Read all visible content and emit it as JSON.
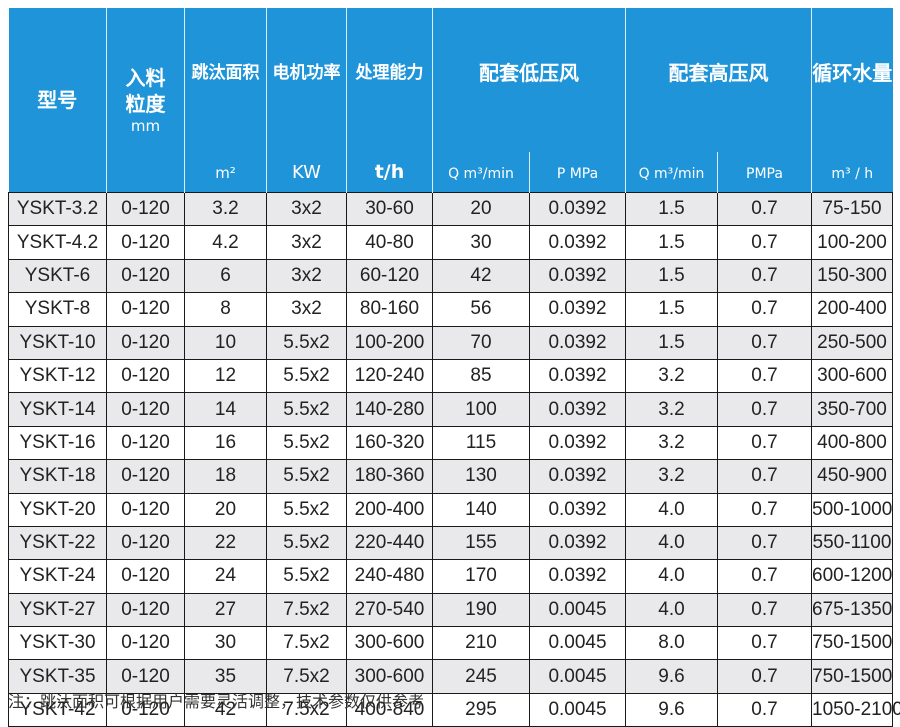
{
  "table": {
    "header": {
      "model": "型号",
      "grain_size": "入料粒度",
      "grain_size_unit": "mm",
      "jig_area": "跳汰面积",
      "jig_area_unit": "m²",
      "motor_power": "电机功率",
      "motor_power_unit": "KW",
      "capacity": "处理能力",
      "capacity_unit": "t/h",
      "low_pressure_air": "配套低压风",
      "low_q": "Q m³/min",
      "low_p": "P MPa",
      "high_pressure_air": "配套高压风",
      "high_q": "Q m³/min",
      "high_p": "PMPa",
      "circulating_water": "循环水量",
      "circulating_water_unit": "m³ / h"
    },
    "rows": [
      [
        "YSKT-3.2",
        "0-120",
        "3.2",
        "3x2",
        "30-60",
        "20",
        "0.0392",
        "1.5",
        "0.7",
        "75-150"
      ],
      [
        "YSKT-4.2",
        "0-120",
        "4.2",
        "3x2",
        "40-80",
        "30",
        "0.0392",
        "1.5",
        "0.7",
        "100-200"
      ],
      [
        "YSKT-6",
        "0-120",
        "6",
        "3x2",
        "60-120",
        "42",
        "0.0392",
        "1.5",
        "0.7",
        "150-300"
      ],
      [
        "YSKT-8",
        "0-120",
        "8",
        "3x2",
        "80-160",
        "56",
        "0.0392",
        "1.5",
        "0.7",
        "200-400"
      ],
      [
        "YSKT-10",
        "0-120",
        "10",
        "5.5x2",
        "100-200",
        "70",
        "0.0392",
        "1.5",
        "0.7",
        "250-500"
      ],
      [
        "YSKT-12",
        "0-120",
        "12",
        "5.5x2",
        "120-240",
        "85",
        "0.0392",
        "3.2",
        "0.7",
        "300-600"
      ],
      [
        "YSKT-14",
        "0-120",
        "14",
        "5.5x2",
        "140-280",
        "100",
        "0.0392",
        "3.2",
        "0.7",
        "350-700"
      ],
      [
        "YSKT-16",
        "0-120",
        "16",
        "5.5x2",
        "160-320",
        "115",
        "0.0392",
        "3.2",
        "0.7",
        "400-800"
      ],
      [
        "YSKT-18",
        "0-120",
        "18",
        "5.5x2",
        "180-360",
        "130",
        "0.0392",
        "3.2",
        "0.7",
        "450-900"
      ],
      [
        "YSKT-20",
        "0-120",
        "20",
        "5.5x2",
        "200-400",
        "140",
        "0.0392",
        "4.0",
        "0.7",
        "500-1000"
      ],
      [
        "YSKT-22",
        "0-120",
        "22",
        "5.5x2",
        "220-440",
        "155",
        "0.0392",
        "4.0",
        "0.7",
        "550-1100"
      ],
      [
        "YSKT-24",
        "0-120",
        "24",
        "5.5x2",
        "240-480",
        "170",
        "0.0392",
        "4.0",
        "0.7",
        "600-1200"
      ],
      [
        "YSKT-27",
        "0-120",
        "27",
        "7.5x2",
        "270-540",
        "190",
        "0.0045",
        "4.0",
        "0.7",
        "675-1350"
      ],
      [
        "YSKT-30",
        "0-120",
        "30",
        "7.5x2",
        "300-600",
        "210",
        "0.0045",
        "8.0",
        "0.7",
        "750-1500"
      ],
      [
        "YSKT-35",
        "0-120",
        "35",
        "7.5x2",
        "300-600",
        "245",
        "0.0045",
        "9.6",
        "0.7",
        "750-1500"
      ],
      [
        "YSKT-42",
        "0-120",
        "42",
        "7.5x2",
        "400-840",
        "295",
        "0.0045",
        "9.6",
        "0.7",
        "1050-2100"
      ]
    ]
  },
  "note": "注：跳汰面积可根据用户需要灵活调整，技术参数仅供参考",
  "colors": {
    "header_bg": "#1f94d8",
    "header_text": "#ffffff",
    "row_stripe": "#e9e9ec",
    "row_plain": "#ffffff",
    "grid": "#1a1a1a"
  }
}
